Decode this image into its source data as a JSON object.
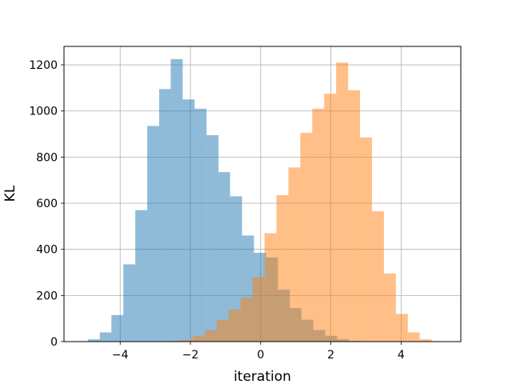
{
  "chart_data": {
    "type": "histogram",
    "title": "",
    "xlabel": "iteration",
    "ylabel": "KL",
    "xlim": [
      -5.6,
      5.7
    ],
    "ylim": [
      0,
      1280
    ],
    "xticks": [
      -4,
      -2,
      0,
      2,
      4
    ],
    "xtick_labels": [
      "−4",
      "−2",
      "0",
      "2",
      "4"
    ],
    "yticks": [
      0,
      200,
      400,
      600,
      800,
      1000,
      1200
    ],
    "ytick_labels": [
      "0",
      "200",
      "400",
      "600",
      "800",
      "1000",
      "1200"
    ],
    "grid": true,
    "legend": "none",
    "series": [
      {
        "color": "#1f77b4",
        "alpha": 0.5,
        "bins": [
          {
            "x0": -5.26,
            "x1": -4.92,
            "value": 2
          },
          {
            "x0": -4.92,
            "x1": -4.58,
            "value": 10
          },
          {
            "x0": -4.58,
            "x1": -4.25,
            "value": 40
          },
          {
            "x0": -4.25,
            "x1": -3.91,
            "value": 115
          },
          {
            "x0": -3.91,
            "x1": -3.57,
            "value": 335
          },
          {
            "x0": -3.57,
            "x1": -3.23,
            "value": 570
          },
          {
            "x0": -3.23,
            "x1": -2.89,
            "value": 935
          },
          {
            "x0": -2.89,
            "x1": -2.56,
            "value": 1095
          },
          {
            "x0": -2.56,
            "x1": -2.22,
            "value": 1225
          },
          {
            "x0": -2.22,
            "x1": -1.88,
            "value": 1050
          },
          {
            "x0": -1.88,
            "x1": -1.54,
            "value": 1010
          },
          {
            "x0": -1.54,
            "x1": -1.2,
            "value": 895
          },
          {
            "x0": -1.2,
            "x1": -0.87,
            "value": 735
          },
          {
            "x0": -0.87,
            "x1": -0.53,
            "value": 630
          },
          {
            "x0": -0.53,
            "x1": -0.19,
            "value": 460
          },
          {
            "x0": -0.19,
            "x1": 0.15,
            "value": 385
          },
          {
            "x0": 0.15,
            "x1": 0.49,
            "value": 365
          },
          {
            "x0": 0.49,
            "x1": 0.83,
            "value": 225
          },
          {
            "x0": 0.83,
            "x1": 1.16,
            "value": 145
          },
          {
            "x0": 1.16,
            "x1": 1.5,
            "value": 95
          },
          {
            "x0": 1.5,
            "x1": 1.84,
            "value": 50
          },
          {
            "x0": 1.84,
            "x1": 2.18,
            "value": 25
          },
          {
            "x0": 2.18,
            "x1": 2.52,
            "value": 10
          },
          {
            "x0": 2.52,
            "x1": 2.85,
            "value": 3
          }
        ]
      },
      {
        "color": "#ff7f0e",
        "alpha": 0.5,
        "bins": [
          {
            "x0": -2.95,
            "x1": -2.61,
            "value": 1
          },
          {
            "x0": -2.61,
            "x1": -2.27,
            "value": 3
          },
          {
            "x0": -2.27,
            "x1": -1.93,
            "value": 8
          },
          {
            "x0": -1.93,
            "x1": -1.59,
            "value": 25
          },
          {
            "x0": -1.59,
            "x1": -1.25,
            "value": 50
          },
          {
            "x0": -1.25,
            "x1": -0.91,
            "value": 95
          },
          {
            "x0": -0.91,
            "x1": -0.57,
            "value": 140
          },
          {
            "x0": -0.57,
            "x1": -0.23,
            "value": 190
          },
          {
            "x0": -0.23,
            "x1": 0.11,
            "value": 280
          },
          {
            "x0": 0.11,
            "x1": 0.45,
            "value": 470
          },
          {
            "x0": 0.45,
            "x1": 0.79,
            "value": 635
          },
          {
            "x0": 0.79,
            "x1": 1.13,
            "value": 755
          },
          {
            "x0": 1.13,
            "x1": 1.47,
            "value": 905
          },
          {
            "x0": 1.47,
            "x1": 1.81,
            "value": 1010
          },
          {
            "x0": 1.81,
            "x1": 2.15,
            "value": 1075
          },
          {
            "x0": 2.15,
            "x1": 2.49,
            "value": 1210
          },
          {
            "x0": 2.49,
            "x1": 2.83,
            "value": 1090
          },
          {
            "x0": 2.83,
            "x1": 3.17,
            "value": 885
          },
          {
            "x0": 3.17,
            "x1": 3.51,
            "value": 565
          },
          {
            "x0": 3.51,
            "x1": 3.85,
            "value": 295
          },
          {
            "x0": 3.85,
            "x1": 4.19,
            "value": 120
          },
          {
            "x0": 4.19,
            "x1": 4.53,
            "value": 40
          },
          {
            "x0": 4.53,
            "x1": 4.87,
            "value": 10
          },
          {
            "x0": 4.87,
            "x1": 5.21,
            "value": 2
          }
        ]
      }
    ]
  }
}
